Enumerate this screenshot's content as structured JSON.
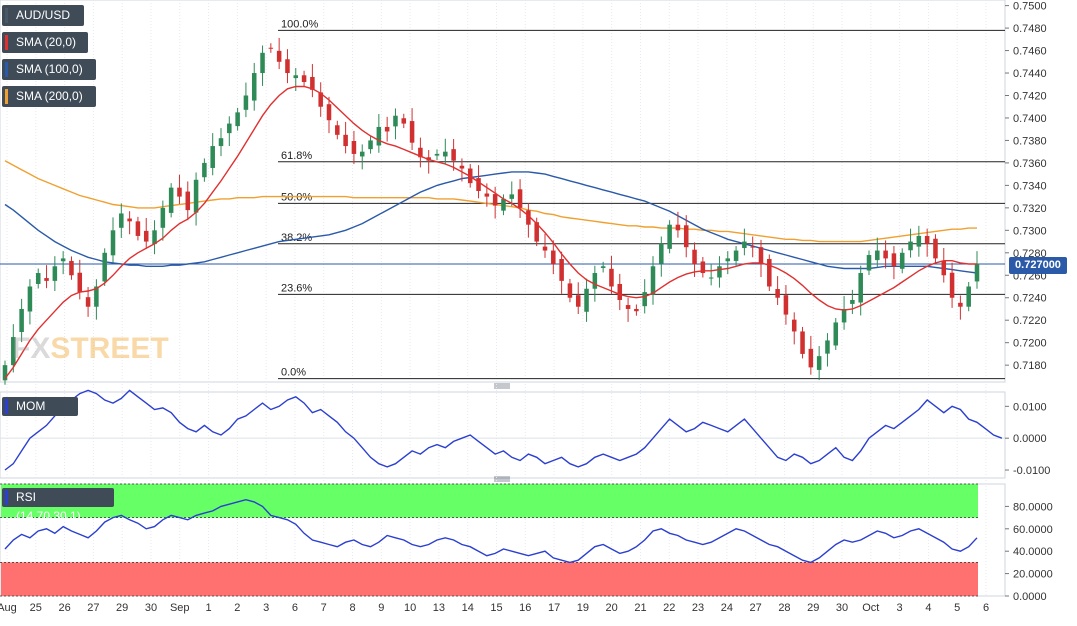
{
  "symbol": "AUD/USD",
  "watermark": {
    "fx": "FX",
    "street": "STREET"
  },
  "legend": [
    {
      "label": "AUD/USD",
      "color": "#4a5866"
    },
    {
      "label": "SMA (20,0)",
      "color": "#e03030"
    },
    {
      "label": "SMA (100,0)",
      "color": "#2b5aa8"
    },
    {
      "label": "SMA (200,0)",
      "color": "#f0a030"
    }
  ],
  "current_price": {
    "label": "0.727000",
    "value": 0.727
  },
  "colors": {
    "up": "#2e8b57",
    "down": "#d03030",
    "sma20": "#e03030",
    "sma100": "#2b5aa8",
    "sma200": "#f0a030",
    "mom": "#2b3fd0",
    "rsi": "#2b3fd0"
  },
  "chart_data": [
    {
      "type": "candlestick",
      "title": "AUD/USD",
      "x_ticks": [
        "Aug",
        "25",
        "26",
        "27",
        "29",
        "30",
        "Sep",
        "1",
        "2",
        "3",
        "6",
        "7",
        "8",
        "9",
        "10",
        "13",
        "14",
        "15",
        "16",
        "17",
        "19",
        "20",
        "21",
        "22",
        "23",
        "24",
        "27",
        "28",
        "29",
        "30",
        "Oct",
        "3",
        "4",
        "5",
        "6"
      ],
      "y_ticks": [
        "0.7500",
        "0.7480",
        "0.7460",
        "0.7440",
        "0.7420",
        "0.7400",
        "0.7380",
        "0.7360",
        "0.7340",
        "0.7320",
        "0.7300",
        "0.7280",
        "0.7260",
        "0.7240",
        "0.7220",
        "0.7200",
        "0.7180"
      ],
      "ylim": [
        0.7165,
        0.7505
      ],
      "fibonacci": [
        {
          "label": "100.0%",
          "value": 0.7478
        },
        {
          "label": "61.8%",
          "value": 0.7361
        },
        {
          "label": "50.0%",
          "value": 0.7324
        },
        {
          "label": "38.2%",
          "value": 0.7288
        },
        {
          "label": "23.6%",
          "value": 0.7243
        },
        {
          "label": "0.0%",
          "value": 0.7168
        }
      ],
      "close": [
        0.718,
        0.7205,
        0.723,
        0.725,
        0.7262,
        0.7255,
        0.7268,
        0.7275,
        0.726,
        0.7245,
        0.7232,
        0.725,
        0.728,
        0.73,
        0.7315,
        0.7308,
        0.7295,
        0.729,
        0.73,
        0.732,
        0.7338,
        0.733,
        0.7318,
        0.7345,
        0.736,
        0.7375,
        0.7382,
        0.7395,
        0.7405,
        0.742,
        0.744,
        0.7458,
        0.7462,
        0.745,
        0.744,
        0.7438,
        0.7432,
        0.7425,
        0.741,
        0.7398,
        0.7385,
        0.7375,
        0.7368,
        0.737,
        0.738,
        0.7392,
        0.7388,
        0.7402,
        0.7395,
        0.7378,
        0.7365,
        0.7362,
        0.7368,
        0.737,
        0.7362,
        0.7355,
        0.7342,
        0.7335,
        0.733,
        0.7322,
        0.7328,
        0.7332,
        0.732,
        0.7305,
        0.729,
        0.7282,
        0.727,
        0.7255,
        0.724,
        0.7232,
        0.7248,
        0.7262,
        0.7268,
        0.725,
        0.7238,
        0.723,
        0.7228,
        0.7245,
        0.7268,
        0.7288,
        0.7305,
        0.73,
        0.7285,
        0.727,
        0.7262,
        0.7258,
        0.7268,
        0.7275,
        0.7282,
        0.729,
        0.7285,
        0.727,
        0.725,
        0.724,
        0.7225,
        0.721,
        0.719,
        0.7178,
        0.7188,
        0.7202,
        0.7218,
        0.723,
        0.7238,
        0.7262,
        0.7278,
        0.7282,
        0.7275,
        0.7268,
        0.728,
        0.729,
        0.7295,
        0.7288,
        0.7275,
        0.726,
        0.724,
        0.7232,
        0.725,
        0.727
      ],
      "open_close_offset": 0.0009,
      "wick": 0.001,
      "sma20": [
        0.7168,
        0.7178,
        0.719,
        0.7202,
        0.7212,
        0.722,
        0.7228,
        0.7236,
        0.7242,
        0.7245,
        0.7246,
        0.7248,
        0.7253,
        0.726,
        0.7268,
        0.7275,
        0.728,
        0.7284,
        0.7288,
        0.7293,
        0.73,
        0.7306,
        0.731,
        0.7316,
        0.7324,
        0.7334,
        0.7344,
        0.7355,
        0.7366,
        0.7378,
        0.739,
        0.7402,
        0.7412,
        0.742,
        0.7426,
        0.7428,
        0.7428,
        0.7426,
        0.7422,
        0.7416,
        0.7409,
        0.7402,
        0.7395,
        0.7389,
        0.7384,
        0.738,
        0.7377,
        0.7375,
        0.7372,
        0.7369,
        0.7366,
        0.7363,
        0.7361,
        0.7359,
        0.7356,
        0.7352,
        0.7348,
        0.7343,
        0.7338,
        0.7333,
        0.7328,
        0.7324,
        0.7319,
        0.7313,
        0.7306,
        0.7298,
        0.7289,
        0.7279,
        0.727,
        0.7262,
        0.7256,
        0.7252,
        0.7249,
        0.7246,
        0.7243,
        0.7241,
        0.724,
        0.7241,
        0.7244,
        0.7249,
        0.7254,
        0.7258,
        0.7261,
        0.7263,
        0.7264,
        0.7264,
        0.7265,
        0.7266,
        0.7268,
        0.727,
        0.7271,
        0.7271,
        0.7269,
        0.7266,
        0.7262,
        0.7257,
        0.7251,
        0.7244,
        0.7238,
        0.7233,
        0.723,
        0.7229,
        0.723,
        0.7233,
        0.7237,
        0.7241,
        0.7245,
        0.7249,
        0.7254,
        0.7259,
        0.7264,
        0.7268,
        0.7271,
        0.7273,
        0.7273,
        0.7271,
        0.727,
        0.727
      ],
      "sma100": [
        0.7323,
        0.7318,
        0.7312,
        0.7306,
        0.73,
        0.7295,
        0.729,
        0.7286,
        0.7282,
        0.7279,
        0.7276,
        0.7274,
        0.7272,
        0.7271,
        0.727,
        0.7269,
        0.7269,
        0.7268,
        0.7268,
        0.7268,
        0.7269,
        0.7269,
        0.727,
        0.7271,
        0.7272,
        0.7274,
        0.7276,
        0.7278,
        0.728,
        0.7282,
        0.7284,
        0.7286,
        0.7288,
        0.729,
        0.7291,
        0.7292,
        0.7293,
        0.7294,
        0.7295,
        0.7296,
        0.7298,
        0.73,
        0.7303,
        0.7306,
        0.731,
        0.7314,
        0.7318,
        0.7322,
        0.7326,
        0.733,
        0.7334,
        0.7337,
        0.734,
        0.7342,
        0.7344,
        0.7346,
        0.7347,
        0.7348,
        0.7349,
        0.735,
        0.7351,
        0.7352,
        0.7352,
        0.7352,
        0.7351,
        0.735,
        0.7348,
        0.7346,
        0.7344,
        0.7342,
        0.734,
        0.7338,
        0.7336,
        0.7334,
        0.7332,
        0.733,
        0.7328,
        0.7326,
        0.7323,
        0.732,
        0.7317,
        0.7313,
        0.7309,
        0.7305,
        0.7301,
        0.7298,
        0.7295,
        0.7292,
        0.729,
        0.7288,
        0.7286,
        0.7284,
        0.7282,
        0.728,
        0.7278,
        0.7276,
        0.7274,
        0.7272,
        0.727,
        0.7268,
        0.7267,
        0.7266,
        0.7266,
        0.7266,
        0.7266,
        0.7267,
        0.7268,
        0.7268,
        0.7268,
        0.7268,
        0.7268,
        0.7268,
        0.7267,
        0.7266,
        0.7265,
        0.7264,
        0.7263,
        0.7262
      ],
      "sma200": [
        0.7362,
        0.7358,
        0.7354,
        0.735,
        0.7346,
        0.7343,
        0.734,
        0.7337,
        0.7334,
        0.7331,
        0.7329,
        0.7327,
        0.7325,
        0.7323,
        0.7322,
        0.7321,
        0.732,
        0.732,
        0.732,
        0.7321,
        0.7322,
        0.7323,
        0.7324,
        0.7325,
        0.7326,
        0.7327,
        0.7328,
        0.7328,
        0.7329,
        0.7329,
        0.7329,
        0.733,
        0.733,
        0.733,
        0.733,
        0.733,
        0.733,
        0.733,
        0.733,
        0.733,
        0.733,
        0.733,
        0.7329,
        0.7329,
        0.7329,
        0.7329,
        0.7329,
        0.7329,
        0.7329,
        0.7329,
        0.7329,
        0.7329,
        0.7328,
        0.7328,
        0.7328,
        0.7327,
        0.7326,
        0.7325,
        0.7324,
        0.7323,
        0.7322,
        0.7321,
        0.732,
        0.7318,
        0.7317,
        0.7315,
        0.7314,
        0.7312,
        0.7311,
        0.731,
        0.7309,
        0.7308,
        0.7307,
        0.7306,
        0.7305,
        0.7304,
        0.7304,
        0.7303,
        0.7303,
        0.7302,
        0.7302,
        0.7302,
        0.7301,
        0.7301,
        0.73,
        0.73,
        0.7299,
        0.7299,
        0.7298,
        0.7297,
        0.7296,
        0.7295,
        0.7294,
        0.7293,
        0.7292,
        0.7292,
        0.7291,
        0.7291,
        0.729,
        0.729,
        0.729,
        0.729,
        0.729,
        0.729,
        0.7291,
        0.7292,
        0.7293,
        0.7294,
        0.7295,
        0.7296,
        0.7297,
        0.7298,
        0.7299,
        0.73,
        0.7301,
        0.7301,
        0.7302,
        0.7302
      ]
    },
    {
      "type": "line",
      "title": "MOM (20)",
      "y_ticks": [
        "0.0100",
        "0.0000",
        "-0.0100"
      ],
      "ylim": [
        -0.0125,
        0.0145
      ],
      "series": [
        {
          "name": "MOM (20)",
          "values": [
            -0.01,
            -0.008,
            -0.004,
            0.0,
            0.002,
            0.004,
            0.007,
            0.01,
            0.012,
            0.014,
            0.015,
            0.014,
            0.012,
            0.011,
            0.0125,
            0.015,
            0.013,
            0.011,
            0.009,
            0.0095,
            0.008,
            0.005,
            0.003,
            0.002,
            0.004,
            0.002,
            0.001,
            0.003,
            0.006,
            0.007,
            0.009,
            0.011,
            0.009,
            0.01,
            0.012,
            0.013,
            0.011,
            0.008,
            0.009,
            0.007,
            0.005,
            0.002,
            0.0,
            -0.003,
            -0.006,
            -0.008,
            -0.009,
            -0.008,
            -0.006,
            -0.004,
            -0.005,
            -0.003,
            -0.002,
            -0.003,
            -0.001,
            0.0,
            0.001,
            -0.001,
            -0.003,
            -0.005,
            -0.004,
            -0.006,
            -0.007,
            -0.005,
            -0.006,
            -0.008,
            -0.007,
            -0.006,
            -0.008,
            -0.009,
            -0.008,
            -0.006,
            -0.005,
            -0.006,
            -0.007,
            -0.006,
            -0.005,
            -0.003,
            0.0,
            0.003,
            0.006,
            0.004,
            0.002,
            0.003,
            0.005,
            0.004,
            0.003,
            0.002,
            0.004,
            0.006,
            0.003,
            0.0,
            -0.003,
            -0.006,
            -0.007,
            -0.005,
            -0.006,
            -0.008,
            -0.007,
            -0.005,
            -0.003,
            -0.006,
            -0.007,
            -0.004,
            0.0,
            0.002,
            0.004,
            0.003,
            0.005,
            0.007,
            0.009,
            0.012,
            0.01,
            0.008,
            0.01,
            0.009,
            0.006,
            0.005,
            0.003,
            0.001,
            0.0
          ]
        }
      ]
    },
    {
      "type": "line",
      "title": "RSI (14,70,30,1)",
      "y_ticks": [
        "80.0000",
        "60.0000",
        "40.0000",
        "20.0000",
        "0.0000"
      ],
      "ylim": [
        0,
        100
      ],
      "bands": [
        {
          "from": 70,
          "to": 100,
          "color": "#66ff66"
        },
        {
          "from": 0,
          "to": 30,
          "color": "#ff7070"
        }
      ],
      "series": [
        {
          "name": "RSI (14,70,30,1)",
          "values": [
            42,
            50,
            55,
            52,
            58,
            60,
            56,
            62,
            58,
            55,
            52,
            58,
            66,
            70,
            72,
            68,
            65,
            60,
            62,
            68,
            72,
            70,
            68,
            72,
            74,
            76,
            80,
            82,
            84,
            86,
            84,
            80,
            72,
            70,
            68,
            64,
            56,
            50,
            48,
            46,
            44,
            48,
            50,
            46,
            44,
            48,
            54,
            52,
            50,
            46,
            44,
            46,
            50,
            52,
            50,
            46,
            44,
            40,
            36,
            38,
            42,
            40,
            38,
            36,
            38,
            40,
            34,
            32,
            30,
            32,
            38,
            44,
            46,
            42,
            38,
            40,
            44,
            50,
            58,
            60,
            56,
            54,
            50,
            48,
            46,
            48,
            52,
            56,
            60,
            58,
            54,
            50,
            46,
            44,
            40,
            36,
            32,
            30,
            34,
            40,
            46,
            50,
            48,
            50,
            54,
            58,
            56,
            52,
            54,
            58,
            60,
            56,
            52,
            48,
            42,
            40,
            44,
            52
          ]
        }
      ]
    }
  ]
}
